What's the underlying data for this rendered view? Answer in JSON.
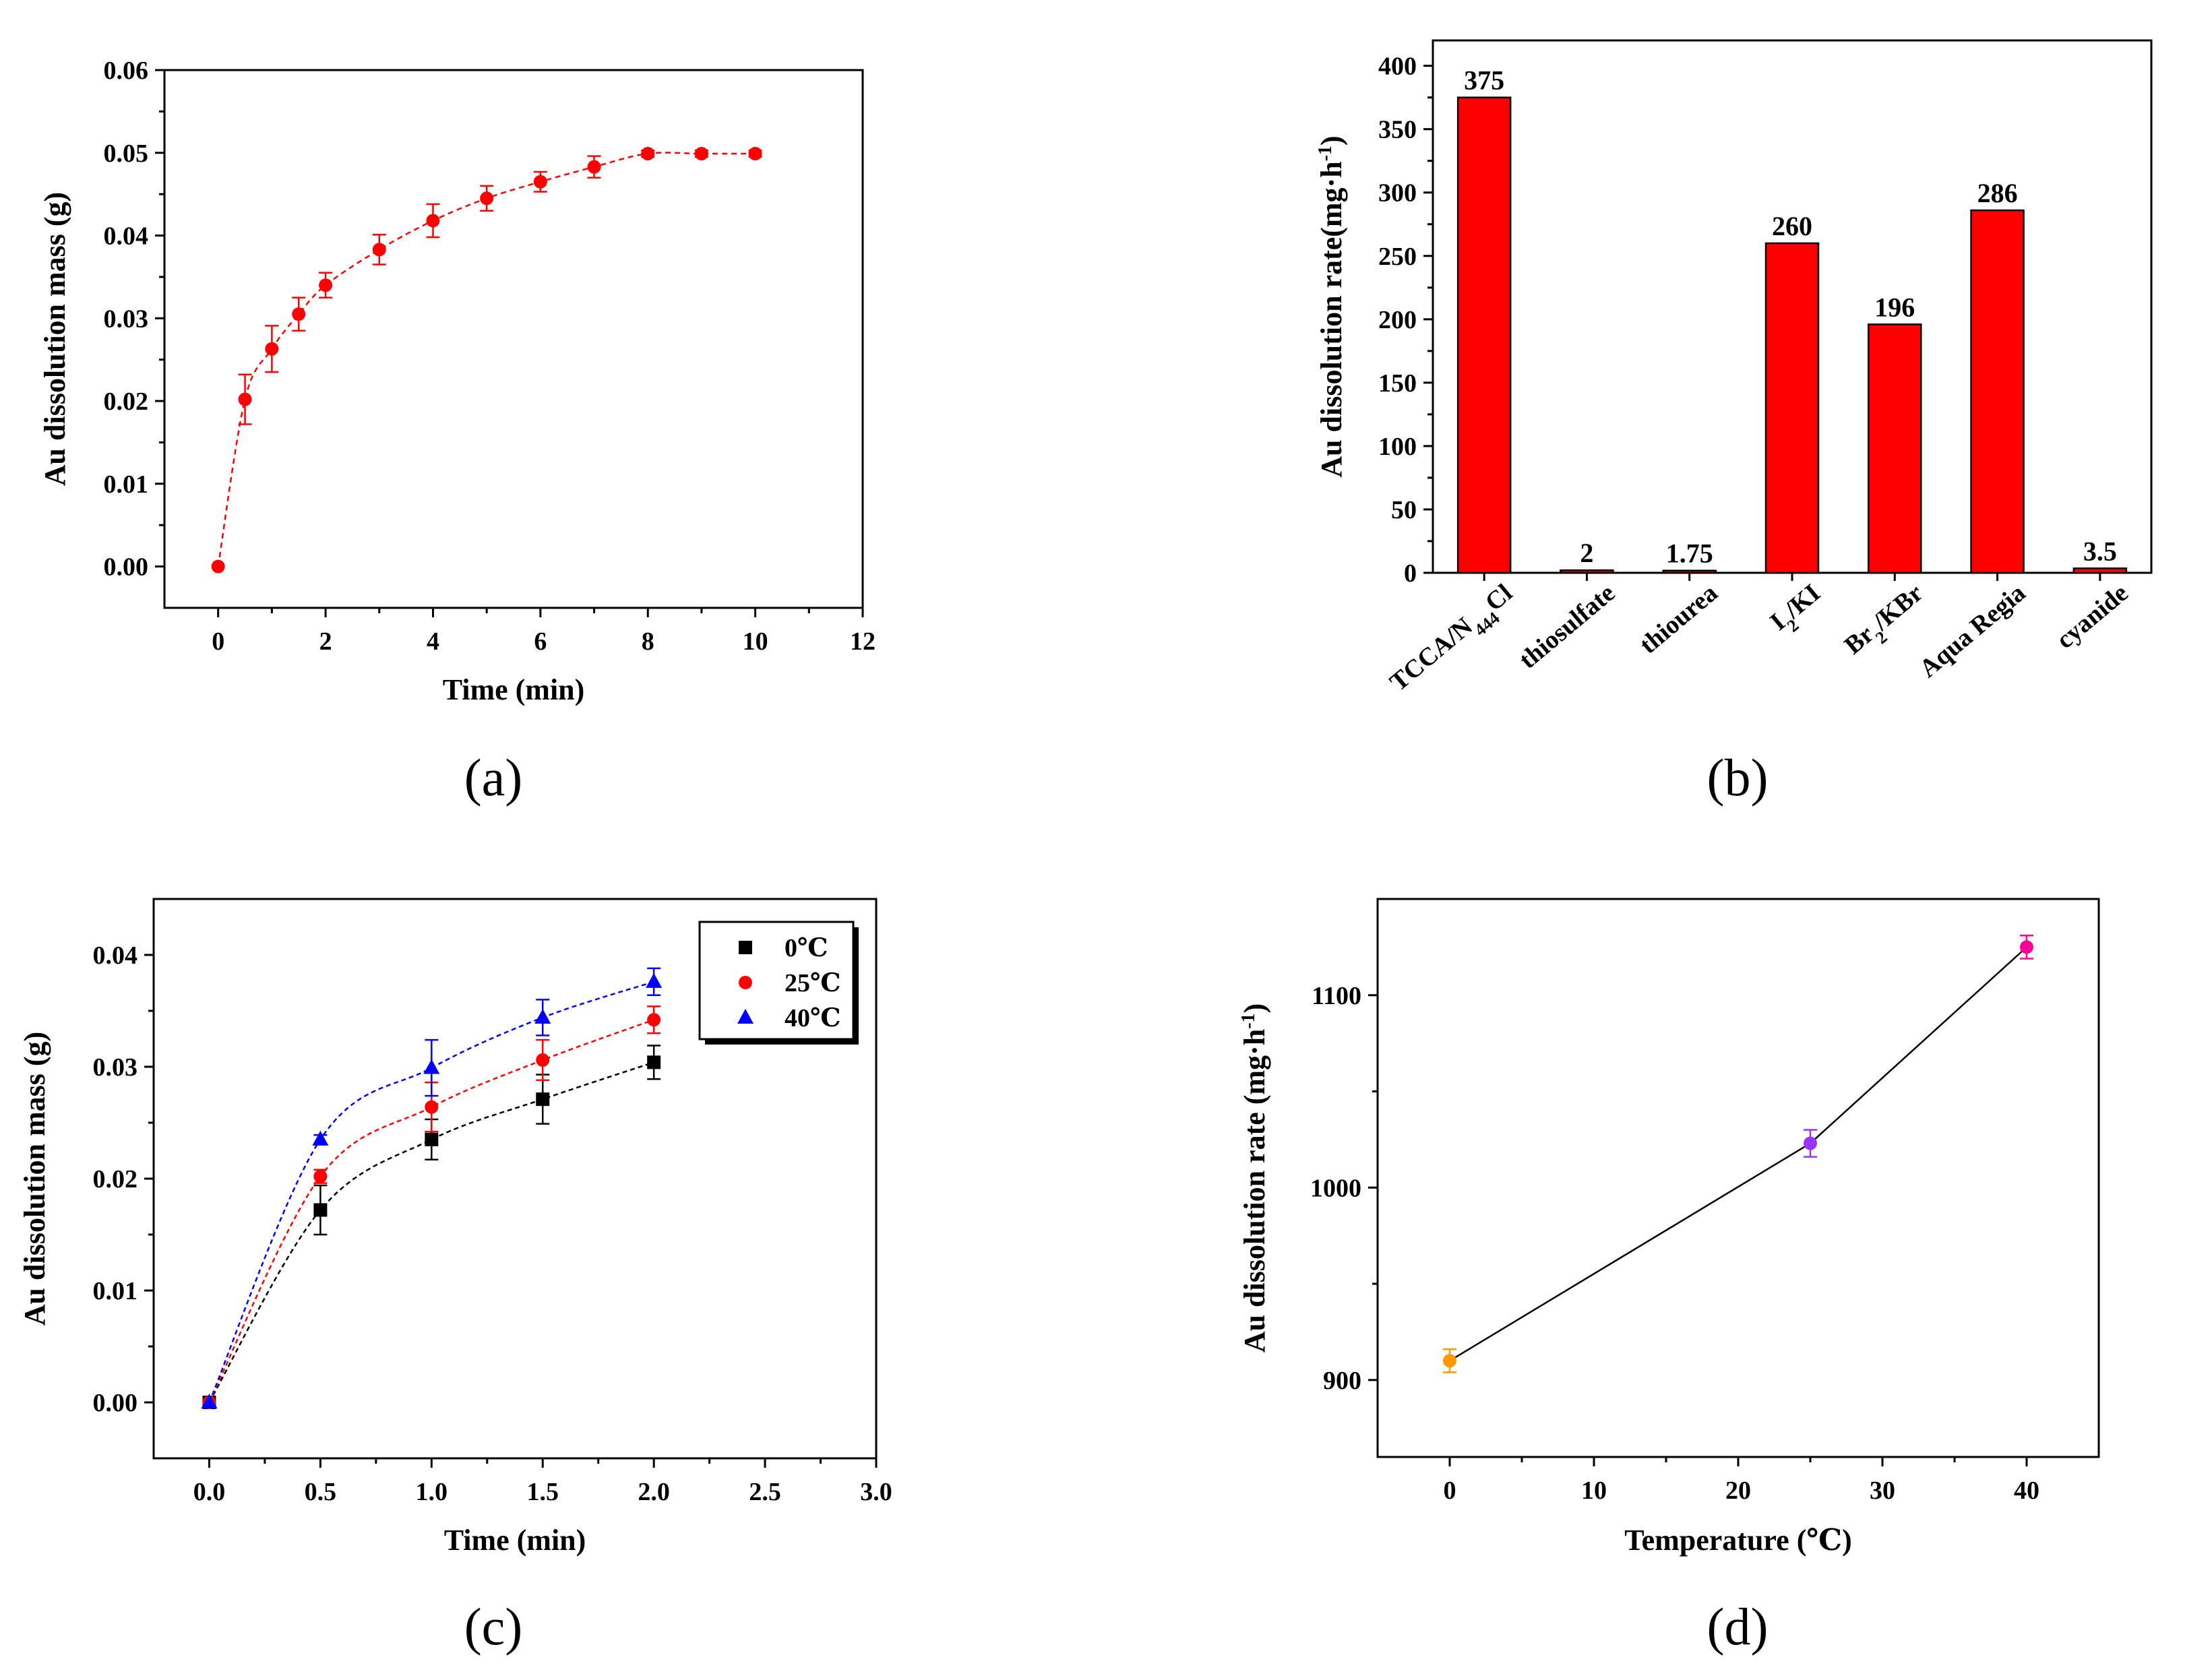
{
  "chart_data": [
    {
      "type": "scatter",
      "panel_label": "(a)",
      "xlabel": "Time (min)",
      "ylabel": "Au dissolution mass (g)",
      "xlim": [
        -1,
        12
      ],
      "ylim": [
        -0.005,
        0.06
      ],
      "xticks": [
        "0",
        "2",
        "4",
        "6",
        "8",
        "10",
        "12"
      ],
      "yticks": [
        "0.00",
        "0.01",
        "0.02",
        "0.03",
        "0.04",
        "0.05",
        "0.06"
      ],
      "series": [
        {
          "name": "Au dissolution mass",
          "color": "#ff0000",
          "x": [
            0,
            0.5,
            1,
            1.5,
            2,
            3,
            4,
            5,
            6,
            7,
            8,
            9,
            10
          ],
          "y": [
            0.0,
            0.0202,
            0.0263,
            0.0305,
            0.034,
            0.0383,
            0.0418,
            0.0445,
            0.0465,
            0.0483,
            0.0499,
            0.0499,
            0.0499
          ],
          "err": [
            0,
            0.003,
            0.0028,
            0.002,
            0.0015,
            0.0018,
            0.002,
            0.0015,
            0.0012,
            0.0013,
            0.0004,
            0.0004,
            0.0004
          ]
        }
      ]
    },
    {
      "type": "bar",
      "panel_label": "(b)",
      "xlabel": "",
      "ylabel": "Au dissolution rate(mg·h",
      "ylabel_sup": "-1",
      "ylabel_end": ")",
      "ylim": [
        0,
        420
      ],
      "yticks": [
        "0",
        "50",
        "100",
        "150",
        "200",
        "250",
        "300",
        "350",
        "400"
      ],
      "categories": [
        {
          "main": "TCCA/N",
          "sub": "444",
          "rest": "Cl"
        },
        {
          "main": "thiosulfate",
          "sub": "",
          "rest": ""
        },
        {
          "main": "thiourea",
          "sub": "",
          "rest": ""
        },
        {
          "main": "I",
          "sub": "2",
          "rest": "/KI"
        },
        {
          "main": "Br",
          "sub": "2",
          "rest": "/KBr"
        },
        {
          "main": "Aqua Regia",
          "sub": "",
          "rest": ""
        },
        {
          "main": "cyanide",
          "sub": "",
          "rest": ""
        }
      ],
      "values": [
        375,
        2,
        1.75,
        260,
        196,
        286,
        3.5
      ],
      "value_labels": [
        "375",
        "2",
        "1.75",
        "260",
        "196",
        "286",
        "3.5"
      ],
      "color": "#ff0000"
    },
    {
      "type": "scatter",
      "panel_label": "(c)",
      "xlabel": "Time (min)",
      "ylabel": "Au dissolution mass (g)",
      "xlim": [
        -0.25,
        3.0
      ],
      "ylim": [
        -0.005,
        0.045
      ],
      "xticks": [
        "0.0",
        "0.5",
        "1.0",
        "1.5",
        "2.0",
        "2.5",
        "3.0"
      ],
      "yticks": [
        "0.00",
        "0.01",
        "0.02",
        "0.03",
        "0.04"
      ],
      "legend": "top-right",
      "series": [
        {
          "name": "0℃",
          "color": "#000000",
          "marker": "square",
          "x": [
            0,
            0.5,
            1.0,
            1.5,
            2.0
          ],
          "y": [
            0.0,
            0.0172,
            0.0235,
            0.0271,
            0.0304
          ],
          "err": [
            0,
            0.0022,
            0.0018,
            0.0022,
            0.0015
          ]
        },
        {
          "name": "25℃",
          "color": "#ff0000",
          "marker": "circle",
          "x": [
            0,
            0.5,
            1.0,
            1.5,
            2.0
          ],
          "y": [
            0.0,
            0.0202,
            0.0264,
            0.0306,
            0.0342
          ],
          "err": [
            0,
            0.0006,
            0.0022,
            0.0018,
            0.0012
          ]
        },
        {
          "name": "40℃",
          "color": "#0000ff",
          "marker": "triangle",
          "x": [
            0,
            0.5,
            1.0,
            1.5,
            2.0
          ],
          "y": [
            0.0,
            0.0235,
            0.0299,
            0.0344,
            0.0376
          ],
          "err": [
            0,
            0.0004,
            0.0025,
            0.0016,
            0.0012
          ]
        }
      ]
    },
    {
      "type": "line",
      "panel_label": "(d)",
      "xlabel": "Temperature (℃)",
      "ylabel": "Au dissolution rate (mg·h",
      "ylabel_sup": "-1",
      "ylabel_end": ")",
      "xlim": [
        -5,
        45
      ],
      "ylim": [
        860,
        1150
      ],
      "xticks": [
        "0",
        "10",
        "20",
        "30",
        "40"
      ],
      "yticks": [
        "900",
        "1000",
        "1100"
      ],
      "series": [
        {
          "name": "Au dissolution rate",
          "x": [
            0,
            25,
            40
          ],
          "y": [
            910,
            1023,
            1125
          ],
          "err": [
            6,
            7,
            6
          ],
          "colors": [
            "#ff9900",
            "#9933ff",
            "#ff0099"
          ]
        }
      ]
    }
  ]
}
